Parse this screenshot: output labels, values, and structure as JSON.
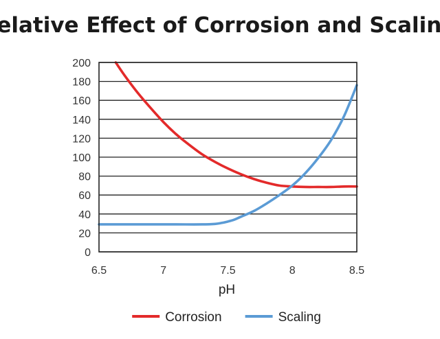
{
  "chart_data": {
    "type": "line",
    "title": "Relative Effect of Corrosion and Scaling",
    "xlabel": "pH",
    "ylabel": "",
    "xlim": [
      6.5,
      8.5
    ],
    "ylim": [
      0,
      200
    ],
    "xticks": [
      6.5,
      7,
      7.5,
      8,
      8.5
    ],
    "xtick_labels": [
      "6.5",
      "7",
      "7.5",
      "8",
      "8.5"
    ],
    "yticks": [
      0,
      20,
      40,
      60,
      80,
      100,
      120,
      140,
      160,
      180,
      200
    ],
    "ytick_labels": [
      "0",
      "20",
      "40",
      "60",
      "80",
      "100",
      "120",
      "140",
      "160",
      "180",
      "200"
    ],
    "grid": "horizontal",
    "legend_position": "bottom",
    "series": [
      {
        "name": "Corrosion",
        "color": "#e32a2a",
        "x": [
          6.63,
          6.7,
          6.8,
          6.9,
          7.0,
          7.1,
          7.2,
          7.3,
          7.4,
          7.5,
          7.6,
          7.7,
          7.8,
          7.9,
          8.0,
          8.1,
          8.2,
          8.3,
          8.4,
          8.5
        ],
        "y": [
          200,
          186,
          168,
          152,
          137,
          124,
          113,
          103,
          95,
          88,
          82,
          77,
          73,
          70,
          69,
          68.5,
          68.5,
          68.5,
          69,
          69
        ]
      },
      {
        "name": "Scaling",
        "color": "#5b9bd5",
        "x": [
          6.5,
          6.7,
          6.9,
          7.1,
          7.3,
          7.4,
          7.45,
          7.5,
          7.55,
          7.6,
          7.7,
          7.8,
          7.9,
          8.0,
          8.1,
          8.2,
          8.3,
          8.4,
          8.5
        ],
        "y": [
          29,
          29,
          29,
          29,
          29,
          29.5,
          30.5,
          32,
          34,
          37,
          43,
          51,
          60,
          70,
          83,
          99,
          118,
          143,
          176
        ]
      }
    ]
  }
}
